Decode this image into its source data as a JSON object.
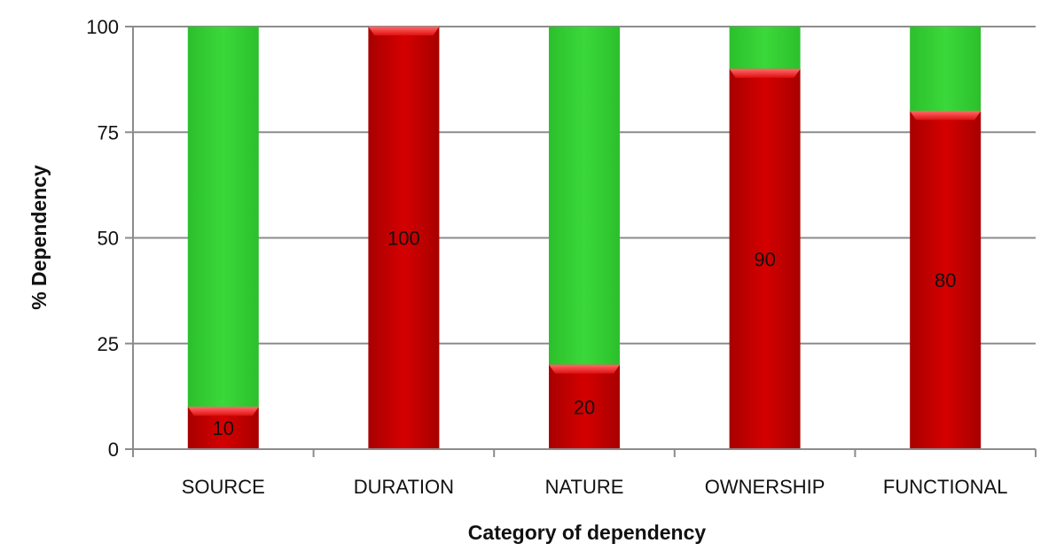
{
  "chart_data": {
    "type": "bar",
    "stacked": true,
    "categories": [
      "SOURCE",
      "DURATION",
      "NATURE",
      "OWNERSHIP",
      "FUNCTIONAL"
    ],
    "series": [
      {
        "values": [
          10,
          100,
          20,
          90,
          80
        ],
        "color": "#cc0000",
        "labels_shown": true
      },
      {
        "values": [
          90,
          0,
          80,
          10,
          20
        ],
        "color": "#33d433",
        "labels_shown": false
      }
    ],
    "data_labels": [
      "10",
      "100",
      "20",
      "90",
      "80"
    ],
    "xlabel": "Category of dependency",
    "ylabel": "% Dependency",
    "ylim": [
      0,
      100
    ],
    "yticks": [
      0,
      25,
      50,
      75,
      100
    ],
    "ytick_labels": [
      "0",
      "25",
      "50",
      "75",
      "100"
    ],
    "grid": true,
    "legend": "none"
  }
}
